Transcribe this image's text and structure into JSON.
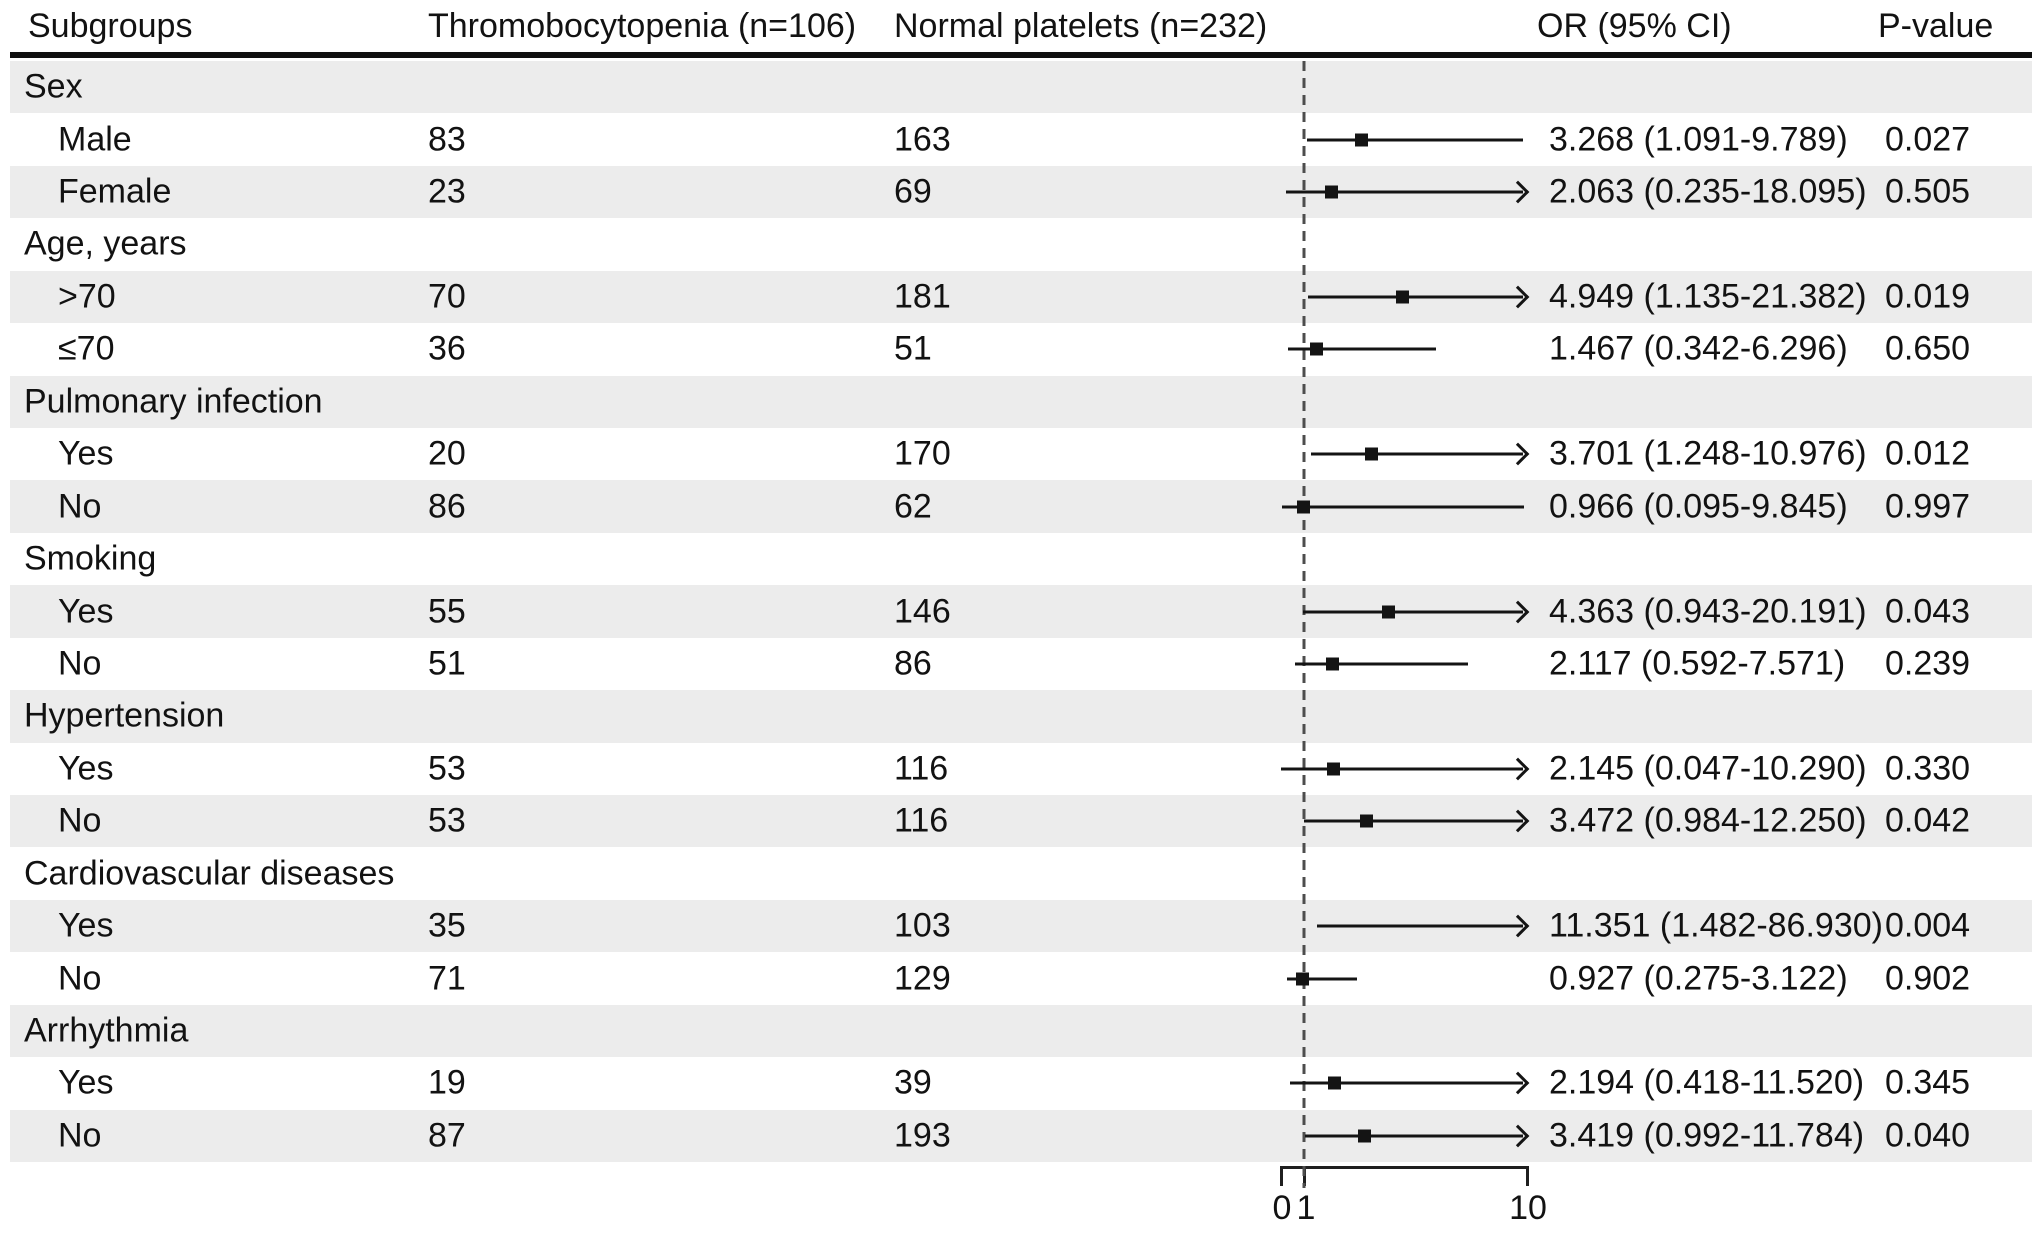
{
  "header": {
    "subgroups": "Subgroups",
    "thrombocytopenia": "Thromobocytopenia (n=106)",
    "normal_platelets": "Normal platelets (n=232)",
    "or_ci": "OR (95% CI)",
    "p_value": "P-value"
  },
  "colors": {
    "stripe": "#ececec",
    "ink": "#121212",
    "reference_line": "#4d4d4d"
  },
  "chart_data": {
    "type": "forest",
    "columns": [
      "Subgroups",
      "Thromobocytopenia (n=106)",
      "Normal platelets (n=232)",
      "OR (95% CI)",
      "P-value"
    ],
    "x_axis": {
      "scale": "linear",
      "min": 0,
      "max": 10,
      "reference_line": 1,
      "tick_labels": [
        "0",
        "1",
        "10"
      ],
      "arrow_meaning": "upper CI limit exceeds axis maximum of 10"
    },
    "rows": [
      {
        "kind": "group",
        "label": "Sex"
      },
      {
        "kind": "item",
        "label": "Male",
        "thrombocytopenia": "83",
        "normal_platelets": "163",
        "or": 3.268,
        "ci_low": 1.091,
        "ci_high": 9.789,
        "or_ci_text": "3.268 (1.091-9.789)",
        "p_value": "0.027"
      },
      {
        "kind": "item",
        "label": "Female",
        "thrombocytopenia": "23",
        "normal_platelets": "69",
        "or": 2.063,
        "ci_low": 0.235,
        "ci_high": 18.095,
        "or_ci_text": "2.063 (0.235-18.095)",
        "p_value": "0.505"
      },
      {
        "kind": "group",
        "label": "Age, years"
      },
      {
        "kind": "item",
        "label": ">70",
        "thrombocytopenia": "70",
        "normal_platelets": "181",
        "or": 4.949,
        "ci_low": 1.135,
        "ci_high": 21.382,
        "or_ci_text": "4.949 (1.135-21.382)",
        "p_value": "0.019"
      },
      {
        "kind": "item",
        "label": "≤70",
        "thrombocytopenia": "36",
        "normal_platelets": "51",
        "or": 1.467,
        "ci_low": 0.342,
        "ci_high": 6.296,
        "or_ci_text": "1.467 (0.342-6.296)",
        "p_value": "0.650"
      },
      {
        "kind": "group",
        "label": "Pulmonary infection"
      },
      {
        "kind": "item",
        "label": "Yes",
        "thrombocytopenia": "20",
        "normal_platelets": "170",
        "or": 3.701,
        "ci_low": 1.248,
        "ci_high": 10.976,
        "or_ci_text": "3.701 (1.248-10.976)",
        "p_value": "0.012"
      },
      {
        "kind": "item",
        "label": "No",
        "thrombocytopenia": "86",
        "normal_platelets": "62",
        "or": 0.966,
        "ci_low": 0.095,
        "ci_high": 9.845,
        "or_ci_text": "0.966 (0.095-9.845)",
        "p_value": "0.997"
      },
      {
        "kind": "group",
        "label": "Smoking"
      },
      {
        "kind": "item",
        "label": "Yes",
        "thrombocytopenia": "55",
        "normal_platelets": "146",
        "or": 4.363,
        "ci_low": 0.943,
        "ci_high": 20.191,
        "or_ci_text": "4.363 (0.943-20.191)",
        "p_value": "0.043"
      },
      {
        "kind": "item",
        "label": "No",
        "thrombocytopenia": "51",
        "normal_platelets": "86",
        "or": 2.117,
        "ci_low": 0.592,
        "ci_high": 7.571,
        "or_ci_text": "2.117 (0.592-7.571)",
        "p_value": "0.239"
      },
      {
        "kind": "group",
        "label": "Hypertension"
      },
      {
        "kind": "item",
        "label": "Yes",
        "thrombocytopenia": "53",
        "normal_platelets": "116",
        "or": 2.145,
        "ci_low": 0.047,
        "ci_high": 10.29,
        "or_ci_text": "2.145 (0.047-10.290)",
        "p_value": "0.330"
      },
      {
        "kind": "item",
        "label": "No",
        "thrombocytopenia": "53",
        "normal_platelets": "116",
        "or": 3.472,
        "ci_low": 0.984,
        "ci_high": 12.25,
        "or_ci_text": "3.472 (0.984-12.250)",
        "p_value": "0.042"
      },
      {
        "kind": "group",
        "label": "Cardiovascular diseases"
      },
      {
        "kind": "item",
        "label": "Yes",
        "thrombocytopenia": "35",
        "normal_platelets": "103",
        "or": 11.351,
        "ci_low": 1.482,
        "ci_high": 86.93,
        "or_ci_text": "11.351 (1.482-86.930)",
        "p_value": "0.004"
      },
      {
        "kind": "item",
        "label": "No",
        "thrombocytopenia": "71",
        "normal_platelets": "129",
        "or": 0.927,
        "ci_low": 0.275,
        "ci_high": 3.122,
        "or_ci_text": "0.927 (0.275-3.122)",
        "p_value": "0.902"
      },
      {
        "kind": "group",
        "label": "Arrhythmia"
      },
      {
        "kind": "item",
        "label": "Yes",
        "thrombocytopenia": "19",
        "normal_platelets": "39",
        "or": 2.194,
        "ci_low": 0.418,
        "ci_high": 11.52,
        "or_ci_text": "2.194 (0.418-11.520)",
        "p_value": "0.345"
      },
      {
        "kind": "item",
        "label": "No",
        "thrombocytopenia": "87",
        "normal_platelets": "193",
        "or": 3.419,
        "ci_low": 0.992,
        "ci_high": 11.784,
        "or_ci_text": "3.419 (0.992-11.784)",
        "p_value": "0.040"
      }
    ]
  }
}
